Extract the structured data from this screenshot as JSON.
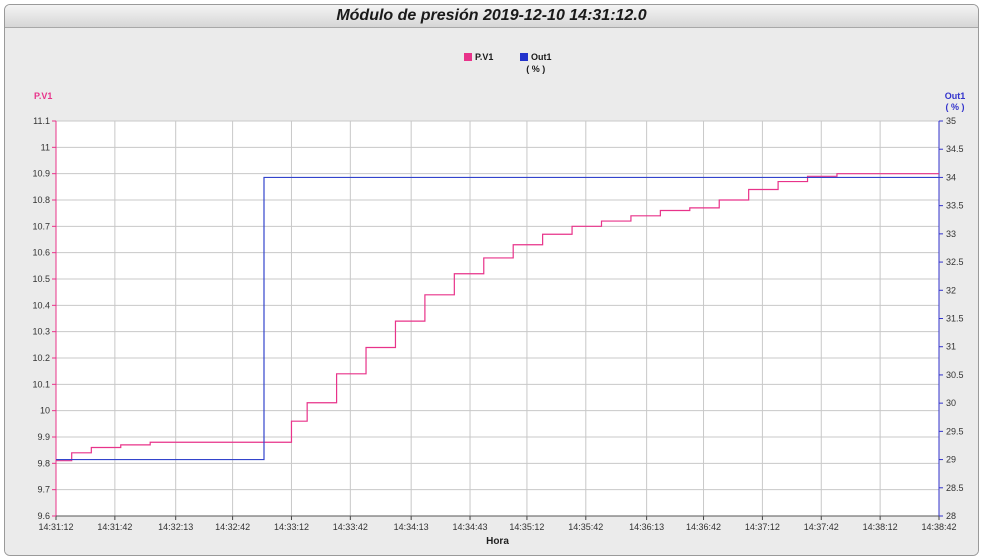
{
  "title": "Módulo de presión  2019-12-10 14:31:12.0",
  "colors": {
    "pv": "#e8338a",
    "out": "#3333cc",
    "grid": "#c8c8c8",
    "plot_bg": "#ffffff",
    "frame_bg": "#ebebeb"
  },
  "legend": [
    {
      "name": "P.V1",
      "unit": "",
      "color": "#e8338a"
    },
    {
      "name": "Out1",
      "unit": "( % )",
      "color": "#2233cc"
    }
  ],
  "chart_data": {
    "type": "line",
    "title": "",
    "xlabel": "Hora",
    "x_ticks": [
      "14:31:12",
      "14:31:42",
      "14:32:13",
      "14:32:42",
      "14:33:12",
      "14:33:42",
      "14:34:13",
      "14:34:43",
      "14:35:12",
      "14:35:42",
      "14:36:13",
      "14:36:42",
      "14:37:12",
      "14:37:42",
      "14:38:12",
      "14:38:42"
    ],
    "x_range": [
      "14:31:12",
      "14:38:42"
    ],
    "left_axis": {
      "label": "P.V1",
      "unit": "",
      "range": [
        9.6,
        11.1
      ],
      "ticks": [
        "9.6",
        "9.7",
        "9.8",
        "9.9",
        "10",
        "10.1",
        "10.2",
        "10.3",
        "10.4",
        "10.5",
        "10.6",
        "10.7",
        "10.8",
        "10.9",
        "11",
        "11.1"
      ]
    },
    "right_axis": {
      "label": "Out1",
      "unit": "( % )",
      "range": [
        28,
        35
      ],
      "ticks": [
        "28",
        "28.5",
        "29",
        "29.5",
        "30",
        "30.5",
        "31",
        "31.5",
        "32",
        "32.5",
        "33",
        "33.5",
        "34",
        "34.5",
        "35"
      ]
    },
    "grid": true,
    "series": [
      {
        "name": "P.V1",
        "axis": "left",
        "step": true,
        "color": "#e8338a",
        "points": [
          [
            "14:31:12",
            9.81
          ],
          [
            "14:31:20",
            9.84
          ],
          [
            "14:31:30",
            9.86
          ],
          [
            "14:31:45",
            9.87
          ],
          [
            "14:32:00",
            9.88
          ],
          [
            "14:32:40",
            9.88
          ],
          [
            "14:33:05",
            9.88
          ],
          [
            "14:33:12",
            9.96
          ],
          [
            "14:33:20",
            10.03
          ],
          [
            "14:33:35",
            10.14
          ],
          [
            "14:33:50",
            10.24
          ],
          [
            "14:34:05",
            10.34
          ],
          [
            "14:34:20",
            10.44
          ],
          [
            "14:34:35",
            10.52
          ],
          [
            "14:34:50",
            10.58
          ],
          [
            "14:35:05",
            10.63
          ],
          [
            "14:35:20",
            10.67
          ],
          [
            "14:35:35",
            10.7
          ],
          [
            "14:35:50",
            10.72
          ],
          [
            "14:36:05",
            10.74
          ],
          [
            "14:36:20",
            10.76
          ],
          [
            "14:36:35",
            10.77
          ],
          [
            "14:36:50",
            10.8
          ],
          [
            "14:37:05",
            10.84
          ],
          [
            "14:37:20",
            10.87
          ],
          [
            "14:37:35",
            10.89
          ],
          [
            "14:37:50",
            10.9
          ],
          [
            "14:38:42",
            10.9
          ]
        ]
      },
      {
        "name": "Out1",
        "axis": "right",
        "step": true,
        "color": "#3344cc",
        "points": [
          [
            "14:31:12",
            29
          ],
          [
            "14:32:58",
            29
          ],
          [
            "14:32:58",
            34
          ],
          [
            "14:38:42",
            34
          ]
        ]
      }
    ]
  }
}
